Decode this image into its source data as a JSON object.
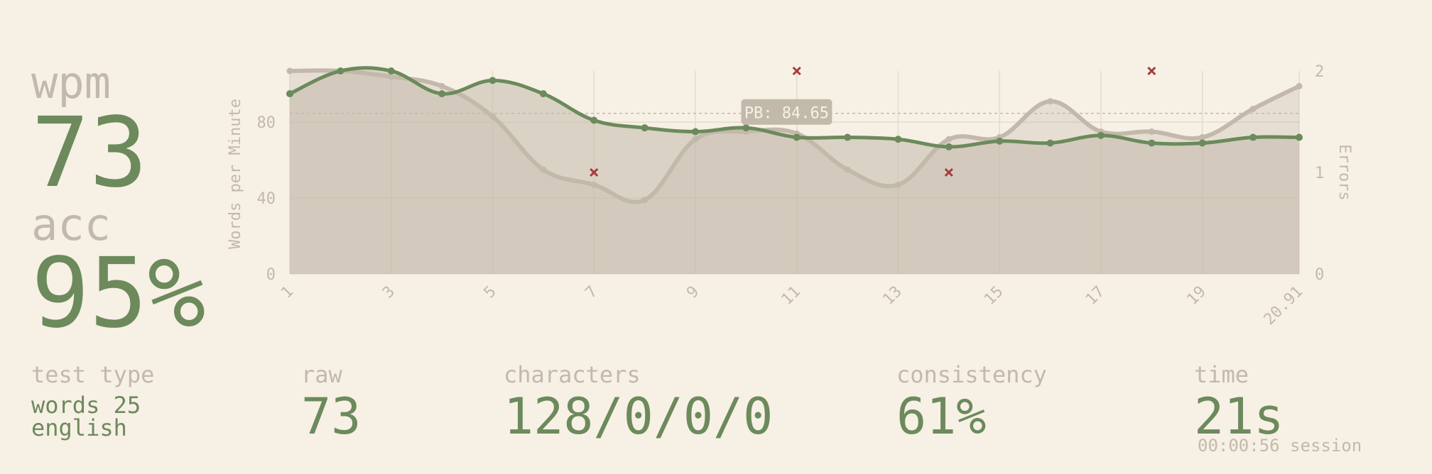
{
  "stats": {
    "wpm_label": "wpm",
    "wpm_value": "73",
    "acc_label": "acc",
    "acc_value": "95%"
  },
  "bottom": {
    "test_type_label": "test type",
    "test_type_line1": "words 25",
    "test_type_line2": "english",
    "raw_label": "raw",
    "raw_value": "73",
    "characters_label": "characters",
    "characters_value": "128/0/0/0",
    "consistency_label": "consistency",
    "consistency_value": "61%",
    "time_label": "time",
    "time_value": "21s",
    "session": "00:00:56 session"
  },
  "colors": {
    "background": "#f7f0e5",
    "main": "#6c8a5b",
    "sub": "#c3b9ab",
    "error": "#a83a3a"
  },
  "chart_data": {
    "type": "line",
    "ylabel": "Words per Minute",
    "y2label": "Errors",
    "ylim": [
      0,
      107
    ],
    "y2lim": [
      0,
      2
    ],
    "y_ticks": [
      0,
      40,
      80
    ],
    "y2_ticks": [
      0,
      1,
      2
    ],
    "x_ticks": [
      "1",
      "3",
      "5",
      "7",
      "9",
      "11",
      "13",
      "15",
      "17",
      "19",
      "20.91"
    ],
    "xlim": [
      1,
      20.91
    ],
    "grid": true,
    "series": [
      {
        "role": "wpm",
        "color": "#6c8a5b",
        "x": [
          1,
          2,
          3,
          4,
          5,
          6,
          7,
          8,
          9,
          10,
          11,
          12,
          13,
          14,
          15,
          16,
          17,
          18,
          19,
          20,
          20.91
        ],
        "values": [
          95,
          107,
          107,
          95,
          102,
          95,
          81,
          77,
          75,
          77,
          72,
          72,
          71,
          67,
          70,
          69,
          73,
          69,
          69,
          72,
          72
        ]
      },
      {
        "role": "raw",
        "color": "#c3b9ab",
        "x": [
          1,
          2,
          3,
          4,
          5,
          6,
          7,
          8,
          9,
          10,
          11,
          12,
          13,
          14,
          15,
          16,
          17,
          18,
          19,
          20,
          20.91
        ],
        "values": [
          107,
          107,
          104,
          99,
          83,
          55,
          47,
          39,
          71,
          75,
          74,
          55,
          47,
          71,
          72,
          91,
          75,
          75,
          72,
          87,
          99
        ]
      }
    ],
    "errors": {
      "x": [
        7,
        11,
        14,
        18
      ],
      "values": [
        1,
        2,
        1,
        2
      ]
    },
    "annotation": {
      "label": "PB: 84.65",
      "value": 84.65
    }
  }
}
